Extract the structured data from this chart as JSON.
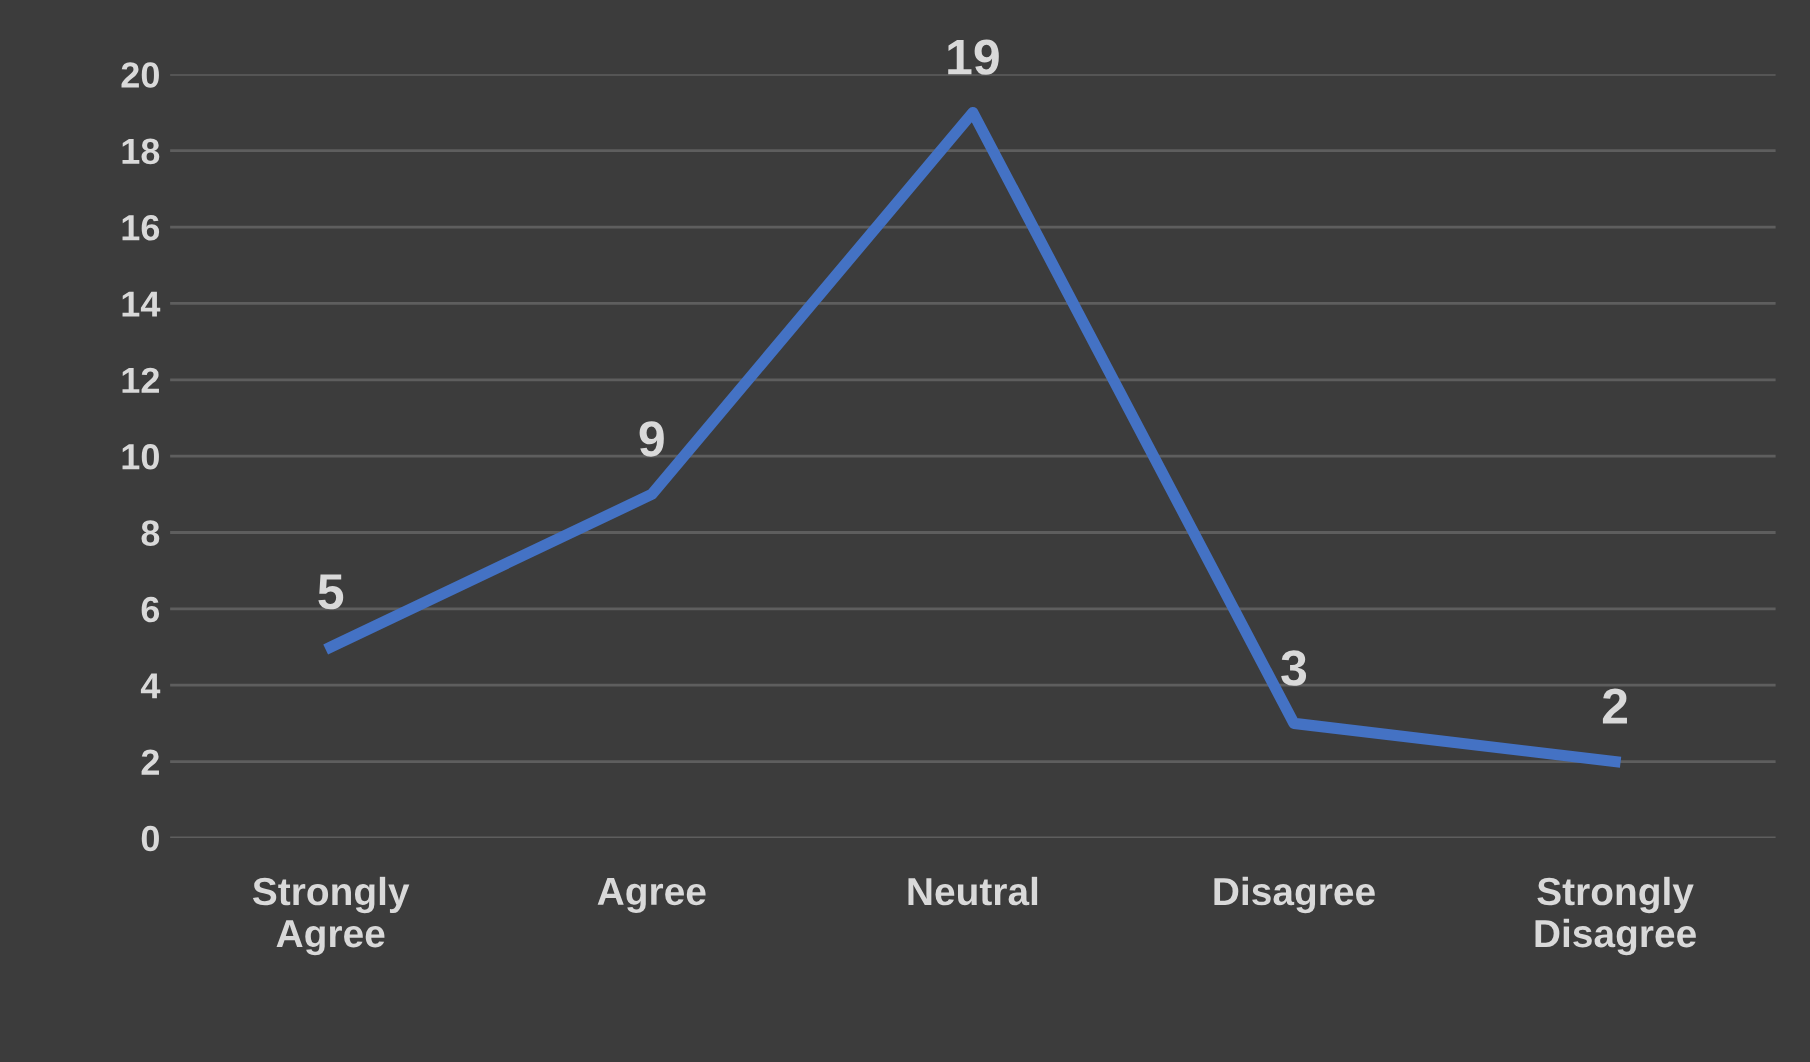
{
  "chart_data": {
    "type": "line",
    "categories": [
      "Strongly\nAgree",
      "Agree",
      "Neutral",
      "Disagree",
      "Strongly\nDisagree"
    ],
    "values": [
      5,
      9,
      19,
      3,
      2
    ],
    "color": "#4472c4",
    "ylim": [
      0,
      20
    ],
    "yticks": [
      0,
      2,
      4,
      6,
      8,
      10,
      12,
      14,
      16,
      18,
      20
    ],
    "grid": "y",
    "data_labels": true,
    "marker": "none",
    "line_style": "solid"
  }
}
